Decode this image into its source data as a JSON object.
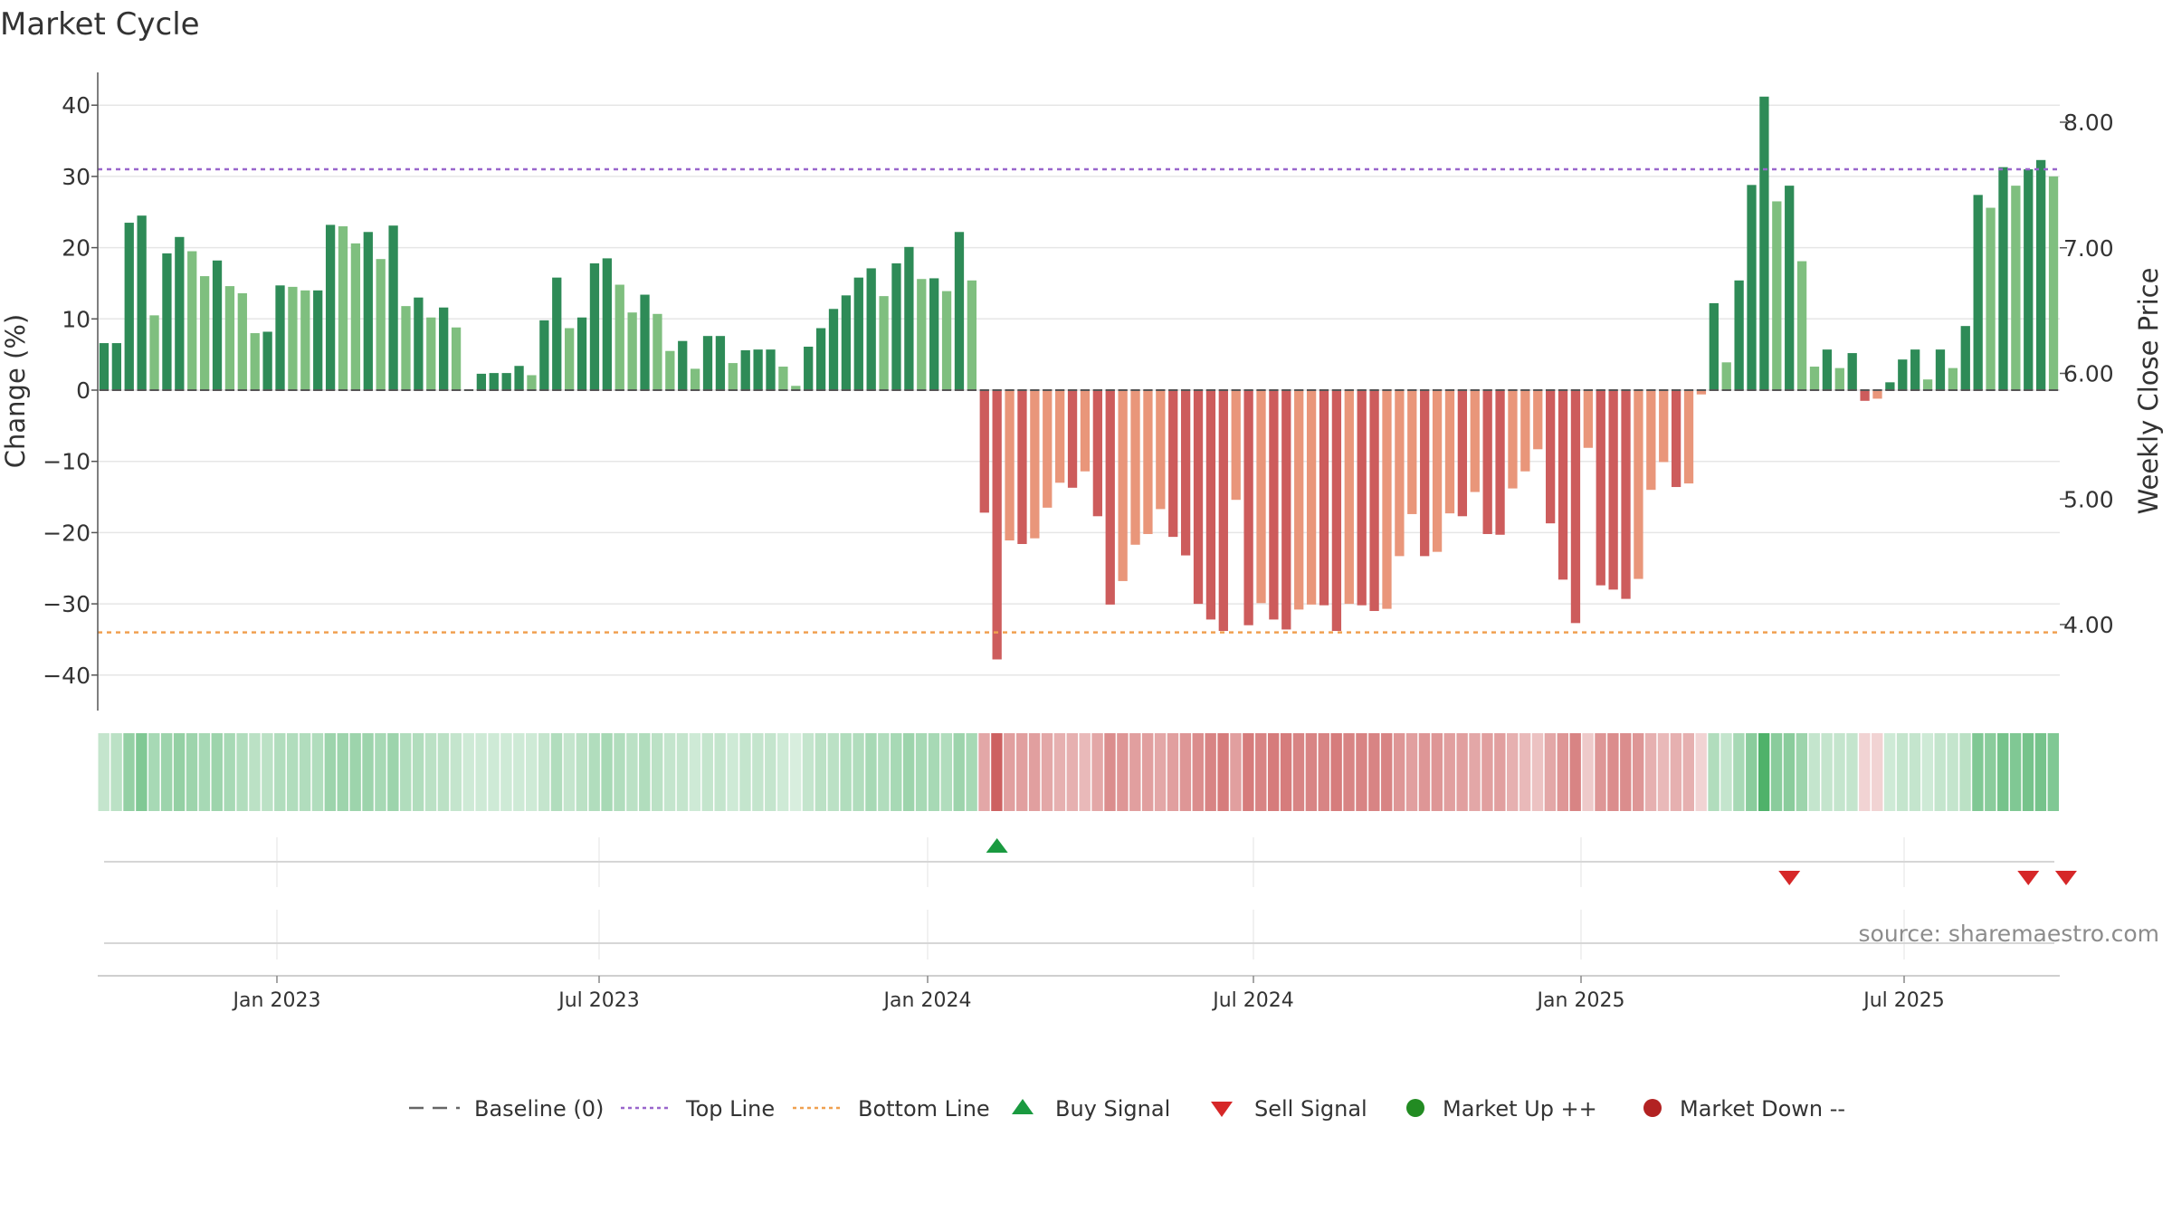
{
  "title": "Market Cycle",
  "source": "source: sharemaestro.com",
  "chart_data": {
    "type": "bar",
    "title": "Market Cycle",
    "ylabel_left": "Change (%)",
    "ylabel_right": "Weekly Close Price",
    "ylim_left": [
      -45,
      45
    ],
    "left_ticks": [
      40,
      30,
      20,
      10,
      0,
      -10,
      -20,
      -30,
      -40
    ],
    "left_tick_labels": [
      "40",
      "30",
      "20",
      "10",
      "0",
      "−10",
      "−20",
      "−30",
      "−40"
    ],
    "right_ticks": [
      8.0,
      7.0,
      6.0,
      5.0,
      4.0
    ],
    "right_tick_labels": [
      "8.00",
      "7.00",
      "6.00",
      "5.00",
      "4.00"
    ],
    "x_tick_labels": [
      "Jan 2023",
      "Jul 2023",
      "Jan 2024",
      "Jul 2024",
      "Jan 2025",
      "Jul 2025"
    ],
    "top_line": 31,
    "bottom_line": -34,
    "grid": true,
    "colors": {
      "up_dark": "#2e8b57",
      "up_light": "#7fbf7f",
      "down_dark": "#cd5c5c",
      "down_light": "#e9967a",
      "top_line": "#9966cc",
      "bottom_line": "#f0a050",
      "buy": "#1a9a40",
      "sell": "#d62728",
      "market_up": "#228b22",
      "market_down": "#b22222"
    },
    "series": [
      {
        "name": "Change (%)",
        "values": [
          6.6,
          6.6,
          23.5,
          24.5,
          10.5,
          19.2,
          21.5,
          19.5,
          16,
          18.2,
          14.6,
          13.6,
          8,
          8.2,
          14.7,
          14.5,
          14,
          14,
          23.2,
          23,
          20.6,
          22.2,
          18.4,
          23.1,
          11.8,
          13,
          10.2,
          11.6,
          8.8,
          0,
          2.3,
          2.4,
          2.4,
          3.4,
          2.1,
          9.8,
          15.8,
          8.7,
          10.2,
          17.8,
          18.5,
          14.8,
          10.9,
          13.4,
          10.7,
          5.5,
          6.9,
          3,
          7.6,
          7.6,
          3.8,
          5.6,
          5.7,
          5.7,
          3.3,
          0.6,
          6.1,
          8.7,
          11.4,
          13.3,
          15.8,
          17.1,
          13.2,
          17.8,
          20.1,
          15.6,
          15.7,
          13.9,
          22.2,
          15.4,
          -17.2,
          -37.8,
          -21.1,
          -21.6,
          -20.8,
          -16.5,
          -13,
          -13.7,
          -11.4,
          -17.7,
          -30.1,
          -26.8,
          -21.7,
          -20.2,
          -16.7,
          -20.6,
          -23.2,
          -30,
          -32.2,
          -33.8,
          -15.4,
          -33,
          -29.9,
          -32.2,
          -33.6,
          -30.8,
          -30.1,
          -30.2,
          -33.8,
          -30,
          -30.2,
          -31,
          -30.7,
          -23.3,
          -17.4,
          -23.3,
          -22.7,
          -17.3,
          -17.7,
          -14.3,
          -20.2,
          -20.3,
          -13.8,
          -11.4,
          -8.3,
          -18.7,
          -26.6,
          -32.7,
          -8.1,
          -27.4,
          -28,
          -29.3,
          -26.5,
          -14,
          -10.1,
          -13.6,
          -13.1,
          -0.6,
          12.2,
          3.9,
          15.4,
          28.8,
          41.2,
          26.5,
          28.7,
          18.1,
          3.3,
          5.7,
          3.1,
          5.2,
          -1.5,
          -1.2,
          1.1,
          4.3,
          5.7,
          1.5,
          5.7,
          3.1,
          9,
          27.4,
          25.6,
          31.3,
          28.7,
          31,
          32.3,
          30
        ]
      }
    ],
    "strength_shading": [
      0.3,
      0.35,
      0.55,
      0.65,
      0.45,
      0.5,
      0.55,
      0.5,
      0.45,
      0.5,
      0.45,
      0.4,
      0.35,
      0.35,
      0.4,
      0.4,
      0.4,
      0.4,
      0.5,
      0.5,
      0.5,
      0.5,
      0.45,
      0.5,
      0.4,
      0.4,
      0.35,
      0.35,
      0.3,
      0.25,
      0.25,
      0.25,
      0.25,
      0.25,
      0.25,
      0.3,
      0.4,
      0.3,
      0.35,
      0.4,
      0.45,
      0.4,
      0.35,
      0.4,
      0.35,
      0.3,
      0.3,
      0.25,
      0.3,
      0.3,
      0.25,
      0.3,
      0.3,
      0.3,
      0.25,
      0.2,
      0.3,
      0.35,
      0.35,
      0.4,
      0.4,
      0.45,
      0.4,
      0.45,
      0.5,
      0.45,
      0.45,
      0.4,
      0.5,
      0.45,
      0.5,
      0.9,
      0.55,
      0.55,
      0.55,
      0.5,
      0.45,
      0.45,
      0.4,
      0.5,
      0.65,
      0.6,
      0.55,
      0.55,
      0.5,
      0.55,
      0.6,
      0.65,
      0.7,
      0.75,
      0.55,
      0.75,
      0.7,
      0.75,
      0.75,
      0.7,
      0.7,
      0.7,
      0.75,
      0.7,
      0.7,
      0.7,
      0.7,
      0.6,
      0.55,
      0.6,
      0.6,
      0.55,
      0.55,
      0.5,
      0.55,
      0.55,
      0.45,
      0.4,
      0.35,
      0.5,
      0.6,
      0.7,
      0.3,
      0.6,
      0.65,
      0.65,
      0.6,
      0.45,
      0.4,
      0.45,
      0.45,
      0.25,
      0.4,
      0.3,
      0.45,
      0.6,
      0.9,
      0.6,
      0.6,
      0.5,
      0.3,
      0.3,
      0.3,
      0.3,
      0.25,
      0.25,
      0.25,
      0.3,
      0.3,
      0.25,
      0.3,
      0.3,
      0.35,
      0.65,
      0.6,
      0.7,
      0.65,
      0.7,
      0.7,
      0.65
    ],
    "buy_signals": [
      71
    ],
    "sell_signals": [
      134,
      153,
      156
    ],
    "legend": [
      {
        "label": "Baseline (0)",
        "symbol": "baseline"
      },
      {
        "label": "Top Line",
        "symbol": "topline"
      },
      {
        "label": "Bottom Line",
        "symbol": "bottomline"
      },
      {
        "label": "Buy Signal",
        "symbol": "buy"
      },
      {
        "label": "Sell Signal",
        "symbol": "sell"
      },
      {
        "label": "Market Up ++",
        "symbol": "up"
      },
      {
        "label": "Market Down --",
        "symbol": "down"
      }
    ]
  }
}
